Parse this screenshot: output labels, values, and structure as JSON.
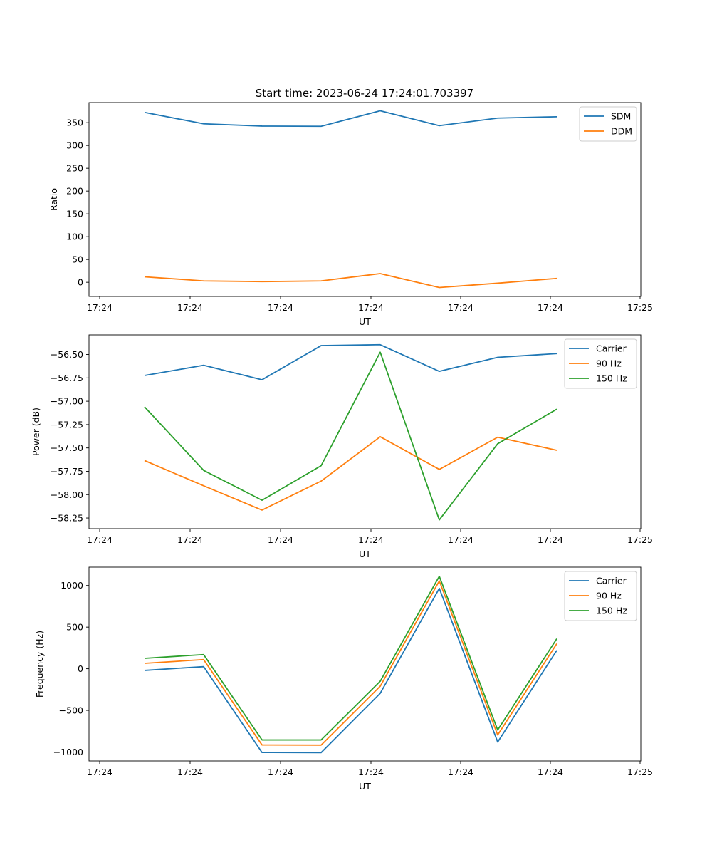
{
  "figure_title": "Start time: 2023-06-24 17:24:01.703397",
  "chart_data": [
    {
      "type": "line",
      "title": "Start time: 2023-06-24 17:24:01.703397",
      "xlabel": "UT",
      "ylabel": "Ratio",
      "x_tick_labels": [
        "17:24",
        "17:24",
        "17:24",
        "17:24",
        "17:24",
        "17:24",
        "17:24",
        "17:25"
      ],
      "y_ticks": [
        0,
        50,
        100,
        150,
        200,
        250,
        300,
        350
      ],
      "y_tick_labels": [
        "0",
        "50",
        "100",
        "150",
        "200",
        "250",
        "300",
        "350"
      ],
      "ylim": [
        -31,
        394
      ],
      "legend_position": "upper right",
      "grid": false,
      "series": [
        {
          "name": "SDM",
          "color": "#1f77b4",
          "y": [
            372.5,
            347.5,
            342.5,
            342,
            376,
            343.5,
            360,
            363
          ]
        },
        {
          "name": "DDM",
          "color": "#ff7f0e",
          "y": [
            12,
            3,
            1.5,
            3,
            19,
            -11.5,
            -2,
            8.5
          ]
        }
      ]
    },
    {
      "type": "line",
      "xlabel": "UT",
      "ylabel": "Power (dB)",
      "x_tick_labels": [
        "17:24",
        "17:24",
        "17:24",
        "17:24",
        "17:24",
        "17:24",
        "17:24",
        "17:25"
      ],
      "y_ticks": [
        -58.25,
        -58.0,
        -57.75,
        -57.5,
        -57.25,
        -57.0,
        -56.75,
        -56.5
      ],
      "y_tick_labels": [
        "−58.25",
        "−58.00",
        "−57.75",
        "−57.50",
        "−57.25",
        "−57.00",
        "−56.75",
        "−56.50"
      ],
      "ylim": [
        -58.364,
        -56.29
      ],
      "legend_position": "upper right",
      "grid": false,
      "series": [
        {
          "name": "Carrier",
          "color": "#1f77b4",
          "y": [
            -56.725,
            -56.615,
            -56.77,
            -56.405,
            -56.395,
            -56.68,
            -56.53,
            -56.49
          ]
        },
        {
          "name": "90 Hz",
          "color": "#ff7f0e",
          "y": [
            -57.635,
            -57.905,
            -58.165,
            -57.855,
            -57.38,
            -57.73,
            -57.385,
            -57.525
          ]
        },
        {
          "name": "150 Hz",
          "color": "#2ca02c",
          "y": [
            -57.06,
            -57.74,
            -58.06,
            -57.69,
            -56.475,
            -58.27,
            -57.455,
            -57.085
          ]
        }
      ]
    },
    {
      "type": "line",
      "xlabel": "UT",
      "ylabel": "Frequency (Hz)",
      "x_tick_labels": [
        "17:24",
        "17:24",
        "17:24",
        "17:24",
        "17:24",
        "17:24",
        "17:24",
        "17:25"
      ],
      "y_ticks": [
        -1000,
        -500,
        0,
        500,
        1000
      ],
      "y_tick_labels": [
        "−1000",
        "−500",
        "0",
        "500",
        "1000"
      ],
      "ylim": [
        -1107,
        1220
      ],
      "legend_position": "upper right",
      "grid": false,
      "series": [
        {
          "name": "Carrier",
          "color": "#1f77b4",
          "y": [
            -20,
            25,
            -1005,
            -1007,
            -295,
            965,
            -880,
            220
          ]
        },
        {
          "name": "90 Hz",
          "color": "#ff7f0e",
          "y": [
            65,
            110,
            -915,
            -917,
            -210,
            1055,
            -795,
            300
          ]
        },
        {
          "name": "150 Hz",
          "color": "#2ca02c",
          "y": [
            125,
            170,
            -855,
            -855,
            -150,
            1110,
            -735,
            360
          ]
        }
      ]
    }
  ]
}
